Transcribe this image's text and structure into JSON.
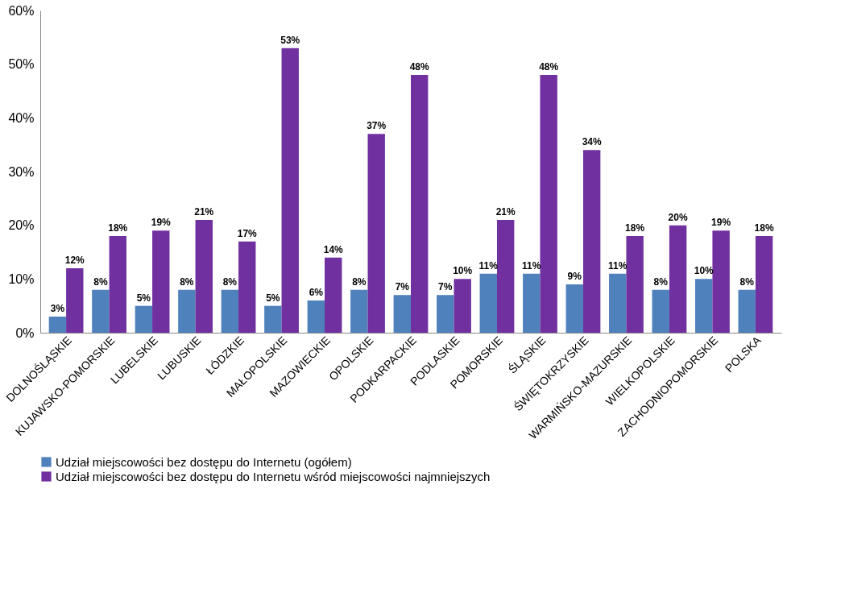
{
  "chart_data": {
    "type": "bar",
    "categories": [
      "DOLNOŚLĄSKIE",
      "KUJAWSKO-POMORSKIE",
      "LUBELSKIE",
      "LUBUSKIE",
      "ŁÓDZKIE",
      "MAŁOPOLSKIE",
      "MAZOWIECKIE",
      "OPOLSKIE",
      "PODKARPACKIE",
      "PODLASKIE",
      "POMORSKIE",
      "ŚLĄSKIE",
      "ŚWIĘTOKRZYSKIE",
      "WARMIŃSKO-MAZURSKIE",
      "WIELKOPOLSKIE",
      "ZACHODNIOPOMORSKIE",
      "POLSKA"
    ],
    "series": [
      {
        "name": "Udział miejscowości bez dostępu do Internetu (ogółem)",
        "color": "#4f81bd",
        "values": [
          3,
          8,
          5,
          8,
          8,
          5,
          6,
          8,
          7,
          7,
          11,
          11,
          9,
          11,
          8,
          10,
          8
        ],
        "value_labels": [
          "3%",
          "8%",
          "5%",
          "8%",
          "8%",
          "5%",
          "6%",
          "8%",
          "7%",
          "7%",
          "11%",
          "11%",
          "9%",
          "11%",
          "8%",
          "10%",
          "8%"
        ]
      },
      {
        "name": "Udział miejscowości bez dostępu do Internetu wśród miejscowości najmniejszych",
        "color": "#7030a0",
        "values": [
          12,
          18,
          19,
          21,
          17,
          53,
          14,
          37,
          48,
          10,
          21,
          48,
          34,
          18,
          20,
          19,
          18
        ],
        "value_labels": [
          "12%",
          "18%",
          "19%",
          "21%",
          "17%",
          "53%",
          "14%",
          "37%",
          "48%",
          "10%",
          "21%",
          "48%",
          "34%",
          "18%",
          "20%",
          "19%",
          "18%"
        ]
      }
    ],
    "ylim": [
      0,
      60
    ],
    "yticks": [
      {
        "value": 0,
        "label": "0%"
      },
      {
        "value": 10,
        "label": "10%"
      },
      {
        "value": 20,
        "label": "20%"
      },
      {
        "value": 30,
        "label": "30%"
      },
      {
        "value": 40,
        "label": "40%"
      },
      {
        "value": 50,
        "label": "50%"
      },
      {
        "value": 60,
        "label": "60%"
      }
    ],
    "grid": false,
    "legend": "bottom"
  }
}
